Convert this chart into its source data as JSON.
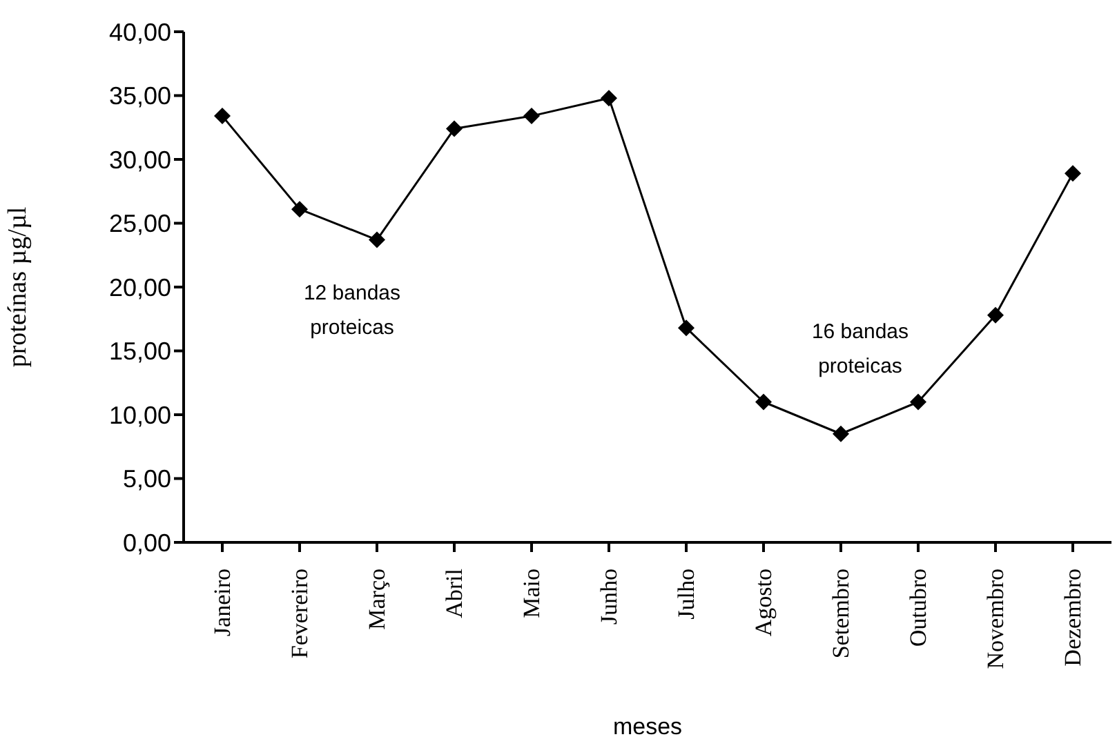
{
  "chart_data": {
    "type": "line",
    "xlabel": "meses",
    "ylabel": "proteínas µg/µl",
    "categories": [
      "Janeiro",
      "Fevereiro",
      "Março",
      "Abril",
      "Maio",
      "Junho",
      "Julho",
      "Agosto",
      "Setembro",
      "Outubro",
      "Novembro",
      "Dezembro"
    ],
    "series": [
      {
        "color": "#000000",
        "values": [
          33.4,
          26.1,
          23.7,
          32.4,
          33.4,
          34.8,
          16.8,
          11.0,
          8.5,
          11.0,
          17.8,
          28.9
        ]
      }
    ],
    "ylim": [
      0,
      40
    ],
    "yticks": [
      {
        "value": 0,
        "label": "0,00"
      },
      {
        "value": 5,
        "label": "5,00"
      },
      {
        "value": 10,
        "label": "10,00"
      },
      {
        "value": 15,
        "label": "15,00"
      },
      {
        "value": 20,
        "label": "20,00"
      },
      {
        "value": 25,
        "label": "25,00"
      },
      {
        "value": 30,
        "label": "30,00"
      },
      {
        "value": 35,
        "label": "35,00"
      },
      {
        "value": 40,
        "label": "40,00"
      }
    ],
    "annotations": [
      "12 bandas\nproteicas",
      "16 bandas\nproteicas"
    ],
    "grid": false,
    "legend": false,
    "marker": "diamond",
    "line_style": "solid"
  }
}
